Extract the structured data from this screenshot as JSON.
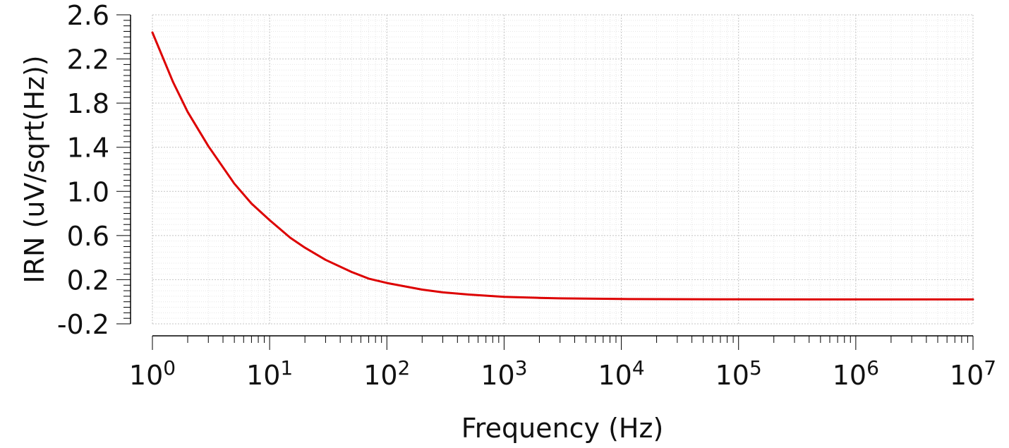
{
  "chart_data": {
    "type": "line",
    "xlabel": "Frequency (Hz)",
    "ylabel": "IRN (uV/sqrt(Hz))",
    "x_scale": "log",
    "xlim": [
      1,
      10000000
    ],
    "ylim": [
      -0.2,
      2.6
    ],
    "x_ticks": [
      {
        "base": "10",
        "exp": "0"
      },
      {
        "base": "10",
        "exp": "1"
      },
      {
        "base": "10",
        "exp": "2"
      },
      {
        "base": "10",
        "exp": "3"
      },
      {
        "base": "10",
        "exp": "4"
      },
      {
        "base": "10",
        "exp": "5"
      },
      {
        "base": "10",
        "exp": "6"
      },
      {
        "base": "10",
        "exp": "7"
      }
    ],
    "y_ticks": [
      "2.6",
      "2.2",
      "1.8",
      "1.4",
      "1.0",
      "0.6",
      "0.2",
      "-0.2"
    ],
    "grid": true,
    "line_color": "#dd0000",
    "series": [
      {
        "x": [
          1,
          1.5,
          2,
          3,
          5,
          7,
          10,
          15,
          20,
          30,
          50,
          70,
          100,
          200,
          300,
          500,
          1000,
          2000,
          3000,
          5000,
          10000,
          100000,
          1000000,
          10000000
        ],
        "values": [
          2.44,
          1.99,
          1.72,
          1.41,
          1.07,
          0.89,
          0.74,
          0.58,
          0.49,
          0.38,
          0.27,
          0.21,
          0.17,
          0.11,
          0.085,
          0.065,
          0.045,
          0.035,
          0.031,
          0.028,
          0.025,
          0.022,
          0.021,
          0.021
        ]
      }
    ]
  }
}
